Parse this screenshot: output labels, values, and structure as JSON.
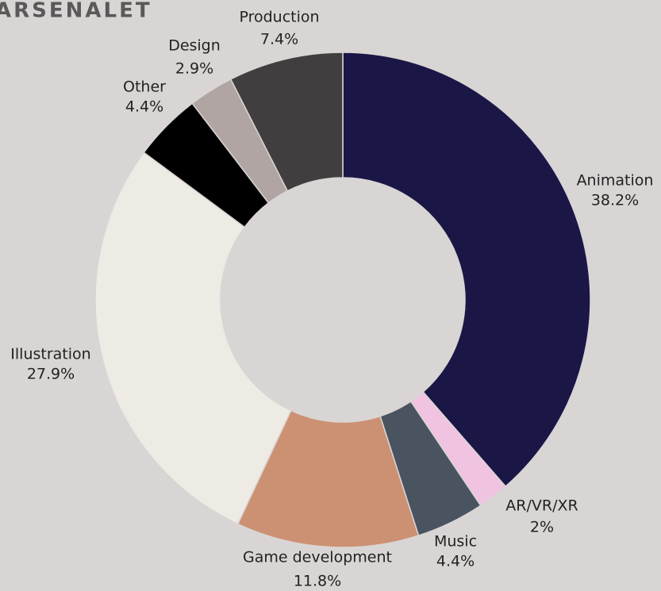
{
  "chart_data": {
    "type": "donut",
    "title": "ARSENALET",
    "categories": [
      "Animation",
      "AR/VR/XR",
      "Music",
      "Game development",
      "Illustration",
      "Other",
      "Design",
      "Production"
    ],
    "values": [
      38.2,
      2,
      4.4,
      11.8,
      27.9,
      4.4,
      2.9,
      7.4
    ],
    "value_labels": [
      "38.2%",
      "2%",
      "4.4%",
      "11.8%",
      "27.9%",
      "4.4%",
      "2.9%",
      "7.4%"
    ],
    "colors": [
      "#1a1646",
      "#f0c4e0",
      "#4a5360",
      "#cc9173",
      "#eeeae4",
      "#000000",
      "#b0a5a3",
      "#403e3e"
    ]
  }
}
